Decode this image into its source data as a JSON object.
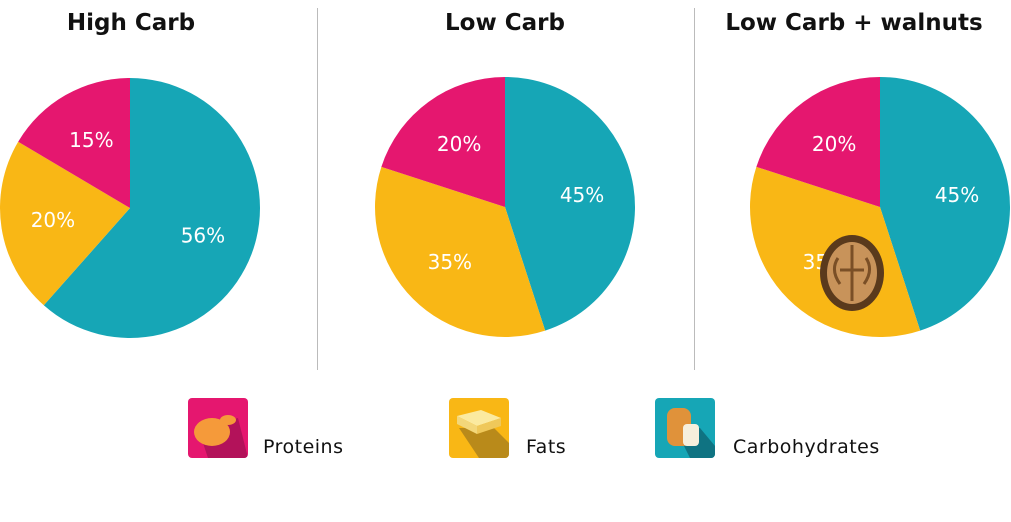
{
  "chart_data": [
    {
      "type": "pie",
      "title": "High Carb",
      "slices": [
        {
          "category": "Carbohydrates",
          "value": 56,
          "label": "56%"
        },
        {
          "category": "Fats",
          "value": 20,
          "label": "20%"
        },
        {
          "category": "Proteins",
          "value": 15,
          "label": "15%"
        }
      ]
    },
    {
      "type": "pie",
      "title": "Low Carb",
      "slices": [
        {
          "category": "Carbohydrates",
          "value": 45,
          "label": "45%"
        },
        {
          "category": "Fats",
          "value": 35,
          "label": "35%"
        },
        {
          "category": "Proteins",
          "value": 20,
          "label": "20%"
        }
      ]
    },
    {
      "type": "pie",
      "title": "Low Carb + walnuts",
      "icon": "walnut-icon",
      "slices": [
        {
          "category": "Carbohydrates",
          "value": 45,
          "label": "45%"
        },
        {
          "category": "Fats",
          "value": 35,
          "label": "35%"
        },
        {
          "category": "Proteins",
          "value": 20,
          "label": "20%"
        }
      ]
    }
  ],
  "legend": {
    "position": "bottom",
    "items": [
      {
        "label": "Proteins",
        "color": "#e5176f",
        "icon": "chicken-icon"
      },
      {
        "label": "Fats",
        "color": "#f9b715",
        "icon": "butter-icon"
      },
      {
        "label": "Carbohydrates",
        "color": "#16a6b6",
        "icon": "bread-icon"
      }
    ]
  },
  "colors": {
    "Proteins": "#e5176f",
    "Fats": "#f9b715",
    "Carbohydrates": "#16a6b6"
  }
}
